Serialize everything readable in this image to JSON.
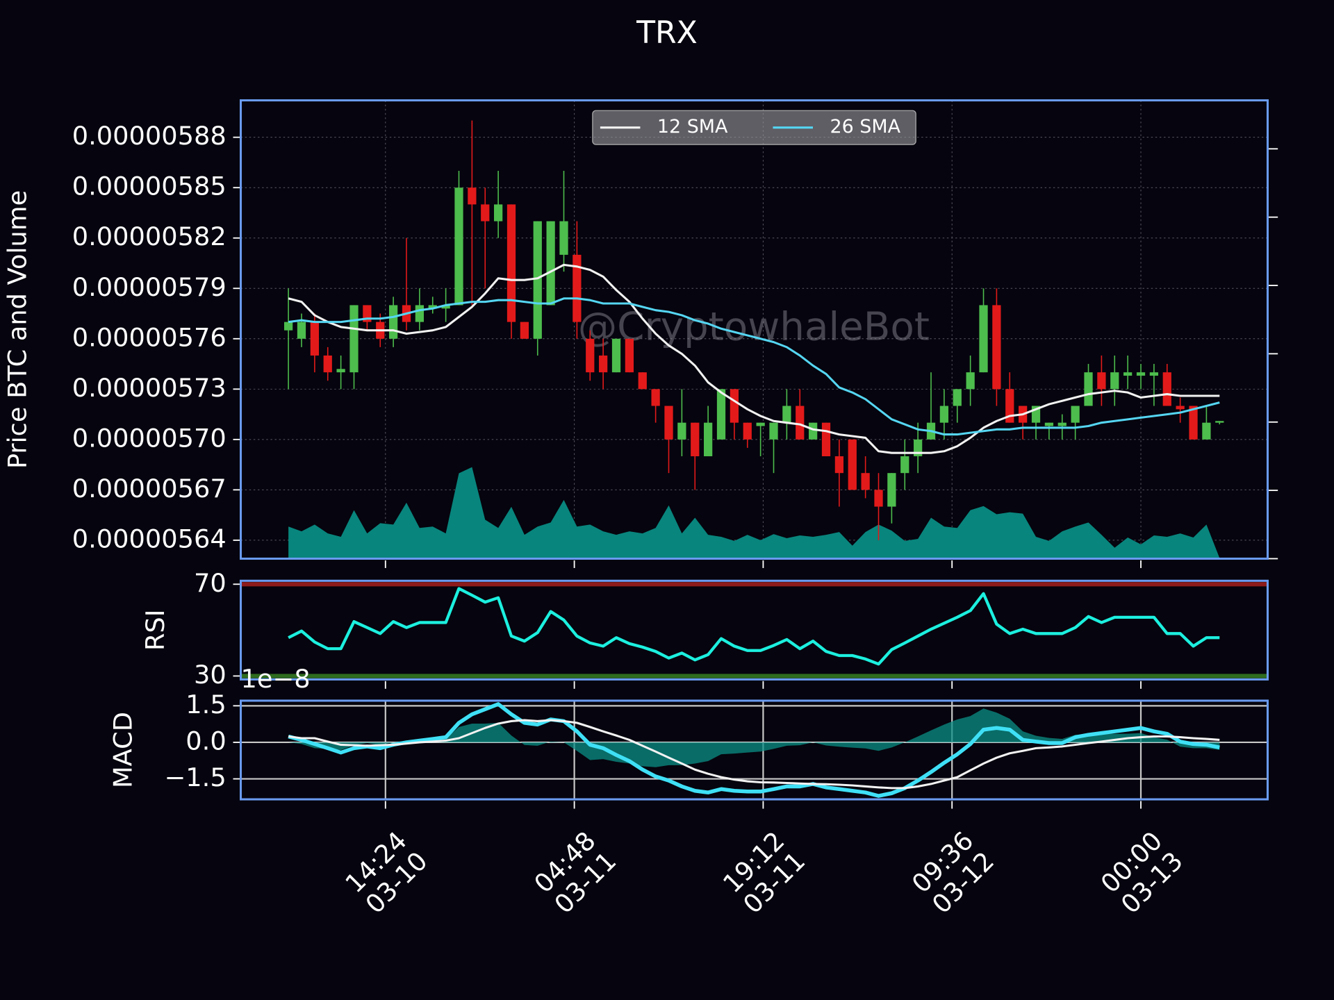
{
  "chart_data": [
    {
      "type": "candlestick",
      "title": "TRX",
      "y_label": "Price BTC and Volume",
      "watermark": "@CryptowhaleBot",
      "x": [
        "03-10 07:00",
        "03-10 08:00",
        "03-10 09:00",
        "03-10 10:00",
        "03-10 11:00",
        "03-10 12:00",
        "03-10 13:00",
        "03-10 14:00",
        "03-10 15:00",
        "03-10 16:00",
        "03-10 17:00",
        "03-10 18:00",
        "03-10 19:00",
        "03-10 20:00",
        "03-10 21:00",
        "03-10 22:00",
        "03-10 23:00",
        "03-11 00:00",
        "03-11 01:00",
        "03-11 02:00",
        "03-11 03:00",
        "03-11 04:00",
        "03-11 05:00",
        "03-11 06:00",
        "03-11 07:00",
        "03-11 08:00",
        "03-11 09:00",
        "03-11 10:00",
        "03-11 11:00",
        "03-11 12:00",
        "03-11 13:00",
        "03-11 14:00",
        "03-11 15:00",
        "03-11 16:00",
        "03-11 17:00",
        "03-11 18:00",
        "03-11 19:00",
        "03-11 20:00",
        "03-11 21:00",
        "03-11 22:00",
        "03-11 23:00",
        "03-12 00:00",
        "03-12 01:00",
        "03-12 02:00",
        "03-12 03:00",
        "03-12 04:00",
        "03-12 05:00",
        "03-12 06:00",
        "03-12 07:00",
        "03-12 08:00",
        "03-12 09:00",
        "03-12 10:00",
        "03-12 11:00",
        "03-12 12:00",
        "03-12 13:00",
        "03-12 14:00",
        "03-12 15:00",
        "03-12 16:00",
        "03-12 17:00",
        "03-12 18:00",
        "03-12 19:00",
        "03-12 20:00",
        "03-12 21:00",
        "03-12 22:00",
        "03-12 23:00",
        "03-13 00:00",
        "03-13 01:00",
        "03-13 02:00",
        "03-13 03:00",
        "03-13 04:00",
        "03-13 05:00",
        "03-13 06:00"
      ],
      "open": [
        5.765e-06,
        5.76e-06,
        5.77e-06,
        5.75e-06,
        5.74e-06,
        5.74e-06,
        5.78e-06,
        5.77e-06,
        5.76e-06,
        5.78e-06,
        5.77e-06,
        5.778e-06,
        5.778e-06,
        5.78e-06,
        5.85e-06,
        5.84e-06,
        5.83e-06,
        5.84e-06,
        5.77e-06,
        5.76e-06,
        5.78e-06,
        5.81e-06,
        5.81e-06,
        5.76e-06,
        5.75e-06,
        5.74e-06,
        5.76e-06,
        5.74e-06,
        5.73e-06,
        5.72e-06,
        5.7e-06,
        5.71e-06,
        5.69e-06,
        5.7e-06,
        5.73e-06,
        5.71e-06,
        5.708e-06,
        5.7e-06,
        5.71e-06,
        5.72e-06,
        5.7e-06,
        5.71e-06,
        5.69e-06,
        5.7e-06,
        5.68e-06,
        5.67e-06,
        5.66e-06,
        5.68e-06,
        5.69e-06,
        5.7e-06,
        5.71e-06,
        5.72e-06,
        5.73e-06,
        5.74e-06,
        5.78e-06,
        5.73e-06,
        5.72e-06,
        5.71e-06,
        5.708e-06,
        5.708e-06,
        5.71e-06,
        5.72e-06,
        5.74e-06,
        5.73e-06,
        5.738e-06,
        5.738e-06,
        5.738e-06,
        5.74e-06,
        5.72e-06,
        5.72e-06,
        5.7e-06,
        5.71e-06
      ],
      "high": [
        5.79e-06,
        5.775e-06,
        5.775e-06,
        5.755e-06,
        5.75e-06,
        5.78e-06,
        5.78e-06,
        5.775e-06,
        5.785e-06,
        5.82e-06,
        5.79e-06,
        5.785e-06,
        5.79e-06,
        5.86e-06,
        5.89e-06,
        5.85e-06,
        5.86e-06,
        5.84e-06,
        5.77e-06,
        5.83e-06,
        5.83e-06,
        5.86e-06,
        5.83e-06,
        5.765e-06,
        5.76e-06,
        5.76e-06,
        5.76e-06,
        5.74e-06,
        5.73e-06,
        5.72e-06,
        5.73e-06,
        5.71e-06,
        5.72e-06,
        5.73e-06,
        5.73e-06,
        5.71e-06,
        5.71e-06,
        5.71e-06,
        5.73e-06,
        5.73e-06,
        5.71e-06,
        5.71e-06,
        5.7e-06,
        5.7e-06,
        5.69e-06,
        5.68e-06,
        5.68e-06,
        5.7e-06,
        5.71e-06,
        5.74e-06,
        5.73e-06,
        5.73e-06,
        5.75e-06,
        5.79e-06,
        5.79e-06,
        5.74e-06,
        5.72e-06,
        5.72e-06,
        5.71e-06,
        5.715e-06,
        5.72e-06,
        5.745e-06,
        5.75e-06,
        5.75e-06,
        5.75e-06,
        5.745e-06,
        5.745e-06,
        5.745e-06,
        5.725e-06,
        5.72e-06,
        5.72e-06,
        5.711e-06
      ],
      "low": [
        5.73e-06,
        5.755e-06,
        5.74e-06,
        5.735e-06,
        5.73e-06,
        5.73e-06,
        5.765e-06,
        5.755e-06,
        5.755e-06,
        5.765e-06,
        5.765e-06,
        5.775e-06,
        5.77e-06,
        5.78e-06,
        5.78e-06,
        5.79e-06,
        5.82e-06,
        5.76e-06,
        5.76e-06,
        5.75e-06,
        5.78e-06,
        5.8e-06,
        5.76e-06,
        5.735e-06,
        5.73e-06,
        5.74e-06,
        5.74e-06,
        5.73e-06,
        5.71e-06,
        5.68e-06,
        5.69e-06,
        5.67e-06,
        5.69e-06,
        5.7e-06,
        5.7e-06,
        5.695e-06,
        5.69e-06,
        5.68e-06,
        5.7e-06,
        5.7e-06,
        5.7e-06,
        5.69e-06,
        5.66e-06,
        5.67e-06,
        5.665e-06,
        5.64e-06,
        5.65e-06,
        5.67e-06,
        5.68e-06,
        5.7e-06,
        5.7e-06,
        5.71e-06,
        5.72e-06,
        5.74e-06,
        5.72e-06,
        5.71e-06,
        5.7e-06,
        5.7e-06,
        5.7e-06,
        5.7e-06,
        5.7e-06,
        5.72e-06,
        5.72e-06,
        5.72e-06,
        5.73e-06,
        5.73e-06,
        5.72e-06,
        5.72e-06,
        5.71e-06,
        5.7e-06,
        5.7e-06,
        5.709e-06
      ],
      "close": [
        5.77e-06,
        5.77e-06,
        5.75e-06,
        5.74e-06,
        5.742e-06,
        5.78e-06,
        5.77e-06,
        5.76e-06,
        5.78e-06,
        5.77e-06,
        5.78e-06,
        5.78e-06,
        5.78e-06,
        5.85e-06,
        5.84e-06,
        5.83e-06,
        5.84e-06,
        5.77e-06,
        5.76e-06,
        5.83e-06,
        5.83e-06,
        5.83e-06,
        5.77e-06,
        5.74e-06,
        5.74e-06,
        5.76e-06,
        5.74e-06,
        5.73e-06,
        5.72e-06,
        5.7e-06,
        5.71e-06,
        5.69e-06,
        5.71e-06,
        5.73e-06,
        5.71e-06,
        5.7e-06,
        5.71e-06,
        5.71e-06,
        5.72e-06,
        5.7e-06,
        5.71e-06,
        5.69e-06,
        5.68e-06,
        5.67e-06,
        5.67e-06,
        5.66e-06,
        5.68e-06,
        5.69e-06,
        5.7e-06,
        5.71e-06,
        5.72e-06,
        5.73e-06,
        5.74e-06,
        5.78e-06,
        5.73e-06,
        5.71e-06,
        5.71e-06,
        5.72e-06,
        5.71e-06,
        5.71e-06,
        5.72e-06,
        5.74e-06,
        5.73e-06,
        5.74e-06,
        5.74e-06,
        5.74e-06,
        5.74e-06,
        5.72e-06,
        5.718e-06,
        5.7e-06,
        5.71e-06,
        5.711e-06
      ],
      "up_color": "#4dbd4d",
      "down_color": "#e31a1a",
      "series": [
        {
          "name": "12 SMA",
          "color": "#f2f2f2",
          "values": [
            5.784e-06,
            5.782e-06,
            5.774e-06,
            5.77e-06,
            5.767e-06,
            5.766e-06,
            5.765e-06,
            5.765e-06,
            5.765e-06,
            5.763e-06,
            5.764e-06,
            5.765e-06,
            5.767e-06,
            5.773e-06,
            5.779e-06,
            5.787e-06,
            5.796e-06,
            5.795e-06,
            5.795e-06,
            5.796e-06,
            5.8e-06,
            5.804e-06,
            5.803e-06,
            5.801e-06,
            5.797e-06,
            5.789e-06,
            5.782e-06,
            5.772e-06,
            5.763e-06,
            5.756e-06,
            5.751e-06,
            5.744e-06,
            5.734e-06,
            5.728e-06,
            5.723e-06,
            5.718e-06,
            5.714e-06,
            5.711e-06,
            5.71e-06,
            5.709e-06,
            5.706e-06,
            5.705e-06,
            5.703e-06,
            5.702e-06,
            5.701e-06,
            5.693e-06,
            5.692e-06,
            5.692e-06,
            5.692e-06,
            5.692e-06,
            5.693e-06,
            5.696e-06,
            5.701e-06,
            5.707e-06,
            5.711e-06,
            5.714e-06,
            5.715e-06,
            5.718e-06,
            5.721e-06,
            5.723e-06,
            5.725e-06,
            5.727e-06,
            5.728e-06,
            5.729e-06,
            5.728e-06,
            5.725e-06,
            5.726e-06,
            5.727e-06,
            5.726e-06,
            5.726e-06,
            5.726e-06,
            5.726e-06
          ]
        },
        {
          "name": "26 SMA",
          "color": "#55d6f2",
          "values": [
            5.77e-06,
            5.771e-06,
            5.77e-06,
            5.77e-06,
            5.77e-06,
            5.771e-06,
            5.772e-06,
            5.772e-06,
            5.773e-06,
            5.775e-06,
            5.777e-06,
            5.778e-06,
            5.78e-06,
            5.781e-06,
            5.782e-06,
            5.782e-06,
            5.783e-06,
            5.783e-06,
            5.782e-06,
            5.781e-06,
            5.781e-06,
            5.784e-06,
            5.784e-06,
            5.783e-06,
            5.781e-06,
            5.781e-06,
            5.781e-06,
            5.779e-06,
            5.777e-06,
            5.776e-06,
            5.774e-06,
            5.771e-06,
            5.769e-06,
            5.766e-06,
            5.764e-06,
            5.762e-06,
            5.76e-06,
            5.758e-06,
            5.755e-06,
            5.75e-06,
            5.744e-06,
            5.739e-06,
            5.731e-06,
            5.728e-06,
            5.724e-06,
            5.718e-06,
            5.712e-06,
            5.709e-06,
            5.706e-06,
            5.705e-06,
            5.703e-06,
            5.703e-06,
            5.704e-06,
            5.705e-06,
            5.706e-06,
            5.706e-06,
            5.707e-06,
            5.707e-06,
            5.707e-06,
            5.707e-06,
            5.707e-06,
            5.708e-06,
            5.71e-06,
            5.711e-06,
            5.712e-06,
            5.713e-06,
            5.714e-06,
            5.715e-06,
            5.716e-06,
            5.718e-06,
            5.72e-06,
            5.722e-06
          ]
        }
      ],
      "volume": [
        0.47,
        0.4,
        0.5,
        0.37,
        0.32,
        0.71,
        0.37,
        0.52,
        0.5,
        0.82,
        0.45,
        0.47,
        0.37,
        1.25,
        1.34,
        0.57,
        0.45,
        0.76,
        0.35,
        0.47,
        0.53,
        0.86,
        0.47,
        0.5,
        0.4,
        0.35,
        0.4,
        0.37,
        0.45,
        0.78,
        0.37,
        0.6,
        0.35,
        0.32,
        0.26,
        0.35,
        0.27,
        0.36,
        0.3,
        0.34,
        0.32,
        0.35,
        0.39,
        0.19,
        0.39,
        0.5,
        0.41,
        0.26,
        0.29,
        0.6,
        0.47,
        0.45,
        0.71,
        0.77,
        0.65,
        0.68,
        0.66,
        0.32,
        0.26,
        0.4,
        0.47,
        0.53,
        0.35,
        0.16,
        0.31,
        0.21,
        0.34,
        0.32,
        0.37,
        0.31,
        0.5,
        0.01
      ],
      "volume_color": "#08857d",
      "volume_axis": "y2",
      "xlim": [
        "03-10 03:22",
        "03-13 09:40"
      ],
      "xticks": [
        {
          "value": "03-10 14:24",
          "label": "14:24\n03-10"
        },
        {
          "value": "03-11 04:48",
          "label": "04:48\n03-11"
        },
        {
          "value": "03-11 19:12",
          "label": "19:12\n03-11"
        },
        {
          "value": "03-12 09:36",
          "label": "09:36\n03-12"
        },
        {
          "value": "03-13 00:00",
          "label": "00:00\n03-13"
        }
      ],
      "ylim": [
        5.629e-06,
        5.902e-06
      ],
      "yticks": [
        {
          "value": 5.64e-06,
          "label": "0.00000564"
        },
        {
          "value": 5.67e-06,
          "label": "0.00000567"
        },
        {
          "value": 5.7e-06,
          "label": "0.00000570"
        },
        {
          "value": 5.73e-06,
          "label": "0.00000573"
        },
        {
          "value": 5.76e-06,
          "label": "0.00000576"
        },
        {
          "value": 5.79e-06,
          "label": "0.00000579"
        },
        {
          "value": 5.82e-06,
          "label": "0.00000582"
        },
        {
          "value": 5.85e-06,
          "label": "0.00000585"
        },
        {
          "value": 5.88e-06,
          "label": "0.00000588"
        }
      ],
      "y2lim": [
        0,
        6.71
      ],
      "y2ticks": [
        0,
        1,
        2,
        3,
        4,
        5,
        6
      ],
      "grid": true,
      "legend": "upper center"
    },
    {
      "type": "line",
      "y_label": "RSI",
      "series": [
        {
          "color": "#1cf0df",
          "values": [
            46.7,
            49.6,
            44.8,
            41.9,
            41.9,
            53.7,
            51.1,
            48.5,
            53.7,
            51.1,
            53.3,
            53.3,
            53.3,
            68.1,
            65.2,
            62.2,
            64.1,
            47.4,
            45.2,
            48.9,
            58.1,
            54.4,
            47.4,
            44.4,
            43.0,
            46.7,
            44.1,
            42.6,
            40.7,
            37.8,
            40.0,
            37.0,
            39.3,
            46.3,
            43.0,
            41.1,
            41.1,
            43.3,
            45.9,
            41.9,
            45.2,
            40.7,
            38.9,
            38.9,
            37.4,
            35.2,
            41.5,
            44.4,
            47.4,
            50.4,
            53.0,
            55.6,
            58.5,
            65.9,
            52.6,
            48.5,
            50.4,
            48.5,
            48.5,
            48.5,
            51.1,
            55.9,
            53.3,
            55.6,
            55.6,
            55.6,
            55.6,
            48.5,
            48.5,
            43.0,
            46.7,
            46.7
          ]
        }
      ],
      "ylim": [
        28.5,
        71.5
      ],
      "yticks": [
        30,
        70
      ],
      "overbought": 70,
      "overbought_color": "#8e1b1b",
      "oversold": 30,
      "oversold_color": "#2f6c1f"
    },
    {
      "type": "macd",
      "y_label": "MACD",
      "offset_label": "1e−8",
      "series": [
        {
          "color": "#3fe0f6",
          "values": [
            0.24,
            0.1,
            -0.07,
            -0.24,
            -0.42,
            -0.24,
            -0.17,
            -0.24,
            -0.1,
            0,
            0.07,
            0.14,
            0.21,
            0.8,
            1.15,
            1.36,
            1.57,
            1.15,
            0.8,
            0.73,
            0.94,
            0.87,
            0.45,
            -0.1,
            -0.24,
            -0.52,
            -0.77,
            -1.12,
            -1.4,
            -1.57,
            -1.81,
            -1.99,
            -2.06,
            -1.92,
            -1.99,
            -2.02,
            -2.02,
            -1.92,
            -1.81,
            -1.81,
            -1.71,
            -1.85,
            -1.92,
            -1.99,
            -2.06,
            -2.2,
            -2.09,
            -1.88,
            -1.57,
            -1.22,
            -0.84,
            -0.49,
            -0.07,
            0.52,
            0.59,
            0.52,
            0.1,
            0.03,
            -0.03,
            -0.03,
            0.21,
            0.31,
            0.38,
            0.45,
            0.52,
            0.59,
            0.45,
            0.35,
            0.03,
            -0.07,
            -0.1,
            -0.21
          ]
        },
        {
          "color": "#f2f2f2",
          "values": [
            0.24,
            0.17,
            0.17,
            0.03,
            -0.1,
            -0.12,
            -0.14,
            -0.12,
            -0.1,
            -0.05,
            0,
            0.03,
            0.07,
            0.17,
            0.38,
            0.59,
            0.77,
            0.87,
            0.91,
            0.87,
            0.91,
            0.87,
            0.8,
            0.63,
            0.45,
            0.28,
            0.1,
            -0.14,
            -0.38,
            -0.63,
            -0.87,
            -1.12,
            -1.29,
            -1.43,
            -1.53,
            -1.6,
            -1.64,
            -1.65,
            -1.67,
            -1.69,
            -1.71,
            -1.72,
            -1.74,
            -1.77,
            -1.81,
            -1.85,
            -1.88,
            -1.88,
            -1.81,
            -1.71,
            -1.57,
            -1.43,
            -1.15,
            -0.87,
            -0.63,
            -0.45,
            -0.35,
            -0.24,
            -0.21,
            -0.17,
            -0.1,
            -0.03,
            0.03,
            0.1,
            0.17,
            0.21,
            0.24,
            0.24,
            0.21,
            0.17,
            0.14,
            0.1
          ]
        }
      ],
      "histogram": [
        0,
        -0.07,
        -0.24,
        -0.27,
        -0.32,
        -0.12,
        -0.03,
        -0.12,
        0,
        0.05,
        0.07,
        0.11,
        0.14,
        0.63,
        0.77,
        0.77,
        0.8,
        0.28,
        -0.11,
        -0.14,
        0.03,
        0,
        -0.35,
        -0.73,
        -0.69,
        -0.8,
        -0.87,
        -0.98,
        -1.02,
        -0.94,
        -0.94,
        -0.87,
        -0.77,
        -0.49,
        -0.46,
        -0.42,
        -0.38,
        -0.27,
        -0.14,
        -0.12,
        0,
        -0.13,
        -0.18,
        -0.22,
        -0.25,
        -0.35,
        -0.21,
        0,
        0.24,
        0.49,
        0.73,
        0.94,
        1.08,
        1.39,
        1.22,
        0.97,
        0.45,
        0.27,
        0.18,
        0.14,
        0.31,
        0.34,
        0.35,
        0.35,
        0.35,
        0.38,
        0.21,
        0.11,
        -0.18,
        -0.24,
        -0.24,
        -0.31
      ],
      "histogram_color": "#0b8f86",
      "ylim": [
        -2.34,
        1.71
      ],
      "yticks": [
        1.5,
        {
          "value": 0,
          "label": "0.0"
        },
        {
          "value": -1.5,
          "label": "−1.5"
        }
      ],
      "grid": true
    }
  ]
}
